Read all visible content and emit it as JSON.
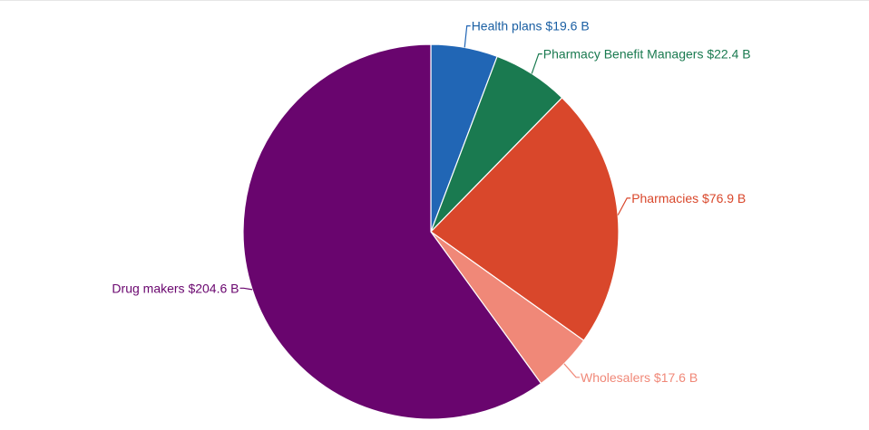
{
  "chart_data": {
    "type": "pie",
    "start_angle_deg": 0,
    "direction": "clockwise",
    "slices": [
      {
        "name": "Health plans",
        "value": 19.6,
        "value_label": "$19.6 B",
        "color": "#2166b5",
        "label_position": "top-right"
      },
      {
        "name": "Pharmacy Benefit Managers",
        "value": 22.4,
        "value_label": "$22.4 B",
        "color": "#1a7a50",
        "label_position": "top-right"
      },
      {
        "name": "Pharmacies",
        "value": 76.9,
        "value_label": "$76.9 B",
        "color": "#d9472b",
        "label_position": "right"
      },
      {
        "name": "Wholesalers",
        "value": 17.6,
        "value_label": "$17.6 B",
        "color": "#f08878",
        "label_position": "bottom-right"
      },
      {
        "name": "Drug makers",
        "value": 204.6,
        "value_label": "$204.6 B",
        "color": "#69056e",
        "label_position": "left"
      }
    ]
  }
}
